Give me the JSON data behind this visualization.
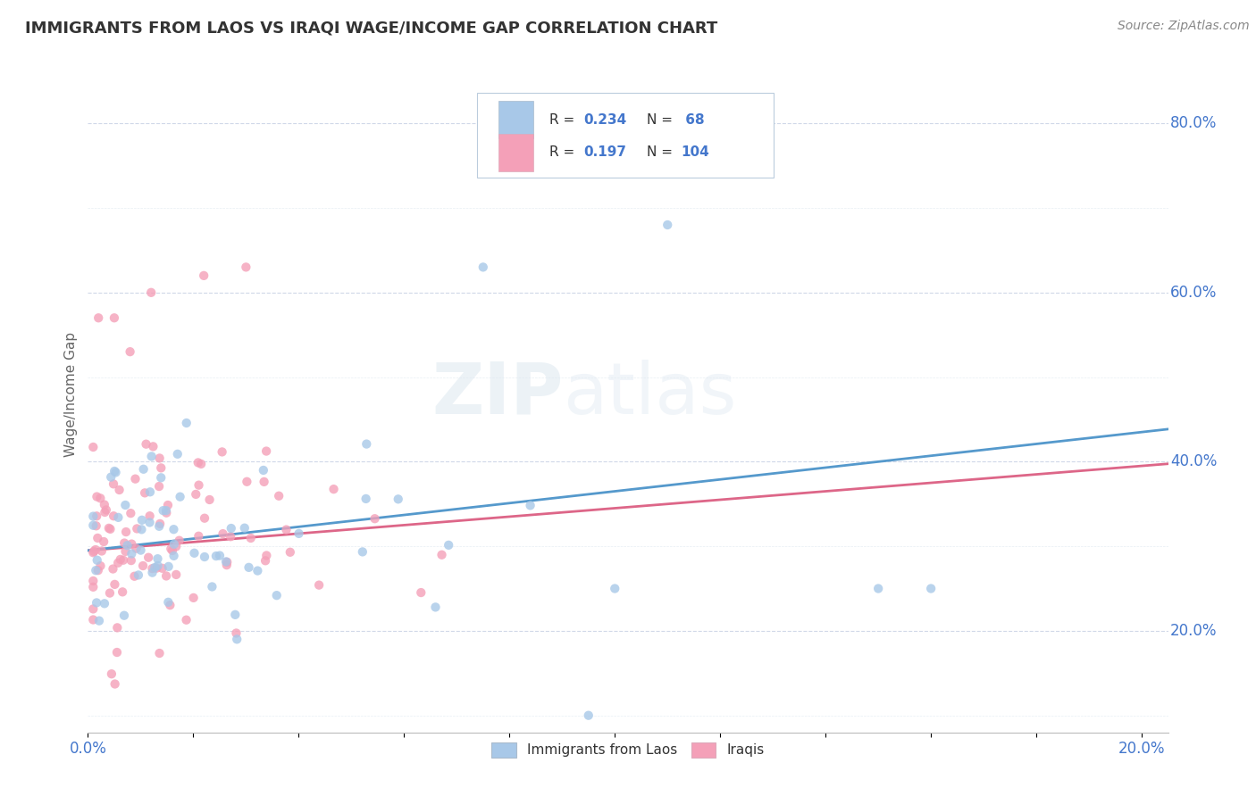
{
  "title": "IMMIGRANTS FROM LAOS VS IRAQI WAGE/INCOME GAP CORRELATION CHART",
  "source": "Source: ZipAtlas.com",
  "ylabel": "Wage/Income Gap",
  "xlim": [
    0.0,
    0.205
  ],
  "ylim": [
    0.08,
    0.88
  ],
  "laos_color": "#a8c8e8",
  "iraqi_color": "#f4a0b8",
  "laos_line_color": "#5599cc",
  "iraqi_line_color": "#dd6688",
  "laos_R": 0.234,
  "laos_N": 68,
  "iraqi_R": 0.197,
  "iraqi_N": 104,
  "watermark_zip": "ZIP",
  "watermark_atlas": "atlas",
  "bg_color": "#ffffff",
  "grid_color": "#d0d8e8",
  "tick_color": "#4477cc",
  "title_color": "#333333",
  "source_color": "#888888",
  "right_yticks": [
    0.2,
    0.4,
    0.6,
    0.8
  ],
  "right_ytick_labels": [
    "20.0%",
    "40.0%",
    "60.0%",
    "80.0%"
  ],
  "xtick_show": [
    0.0,
    0.2
  ],
  "xtick_labels_show": [
    "0.0%",
    "20.0%"
  ]
}
